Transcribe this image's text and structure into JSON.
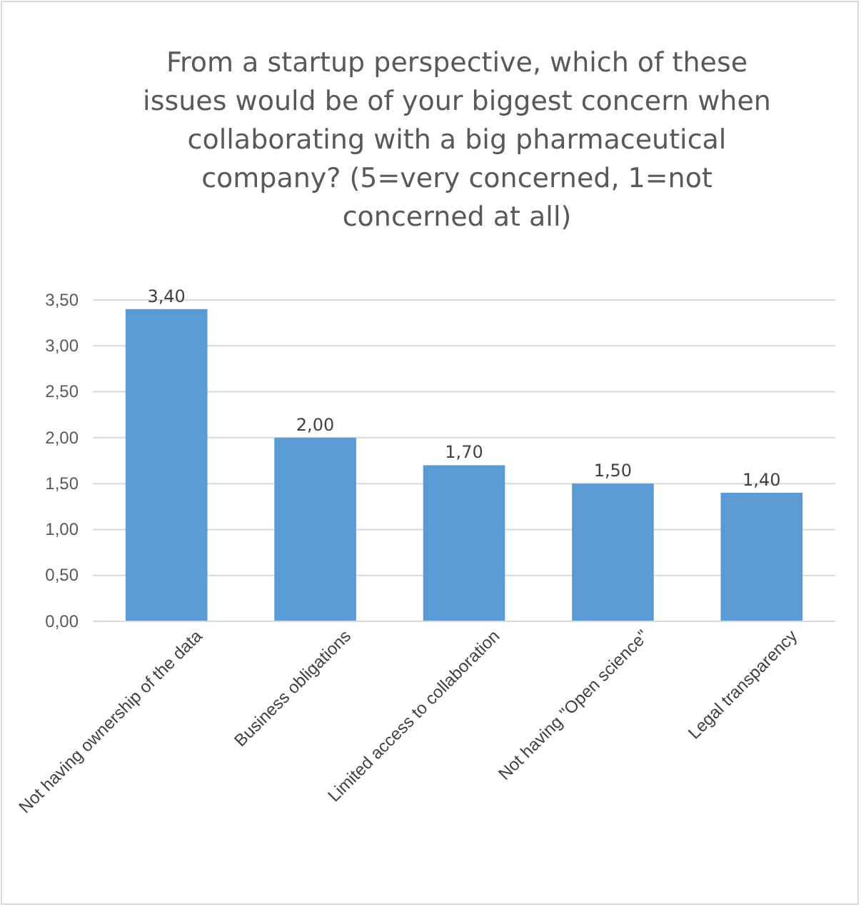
{
  "chart_data": {
    "type": "bar",
    "title": "From a startup perspective, which of these issues would be of your biggest concern when collaborating with a big pharmaceutical company? (5=very concerned, 1=not concerned at all)",
    "categories": [
      "Not having ownership of the data",
      "Business obligations",
      "Limited access to collaboration",
      "Not having \"Open science\"",
      "Legal transparency"
    ],
    "values": [
      3.4,
      2.0,
      1.7,
      1.5,
      1.4
    ],
    "value_labels": [
      "3,40",
      "2,00",
      "1,70",
      "1,50",
      "1,40"
    ],
    "color": "#5b9bd5",
    "ylim": [
      0,
      3.5
    ],
    "yticks": [
      {
        "value": 0,
        "label": "0,00"
      },
      {
        "value": 0.5,
        "label": "0,50"
      },
      {
        "value": 1,
        "label": "1,00"
      },
      {
        "value": 1.5,
        "label": "1,50"
      },
      {
        "value": 2,
        "label": "2,00"
      },
      {
        "value": 2.5,
        "label": "2,50"
      },
      {
        "value": 3,
        "label": "3,00"
      },
      {
        "value": 3.5,
        "label": "3,50"
      }
    ],
    "grid": "y"
  }
}
